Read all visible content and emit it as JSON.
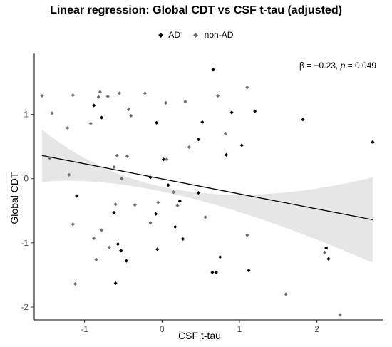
{
  "chart_data": {
    "type": "scatter",
    "title": "Linear regression: Global CDT vs CSF t-tau (adjusted)",
    "xlabel": "CSF t-tau",
    "ylabel": "Global CDT",
    "xlim": [
      -1.65,
      2.85
    ],
    "ylim": [
      -2.2,
      1.95
    ],
    "x_ticks": [
      -1,
      0,
      1,
      2
    ],
    "y_ticks": [
      -2,
      -1,
      0,
      1
    ],
    "x_tick_labels": [
      "-1",
      "0",
      "1",
      "2"
    ],
    "y_tick_labels": [
      "-2",
      "-1",
      "0",
      "1"
    ],
    "legend": {
      "position": "top",
      "entries": [
        "AD",
        "non-AD"
      ]
    },
    "annotation": {
      "beta_text": "β = −0.23,",
      "p_symbol": "p",
      "p_value_text": "= 0.049"
    },
    "regression": {
      "x": [
        -1.55,
        2.72
      ],
      "y": [
        0.36,
        -0.64
      ],
      "ci_upper": [
        0.77,
        -0.19,
        0.02
      ],
      "ci_lower": [
        -0.05,
        -0.28,
        -1.31
      ],
      "ci_x": [
        -1.55,
        0.0,
        2.72
      ]
    },
    "series": [
      {
        "name": "AD",
        "color": "#000000",
        "points": [
          [
            -1.1,
            -0.27
          ],
          [
            -0.88,
            1.14
          ],
          [
            -0.78,
            0.95
          ],
          [
            -0.62,
            -0.53
          ],
          [
            -0.6,
            -1.63
          ],
          [
            -0.57,
            -1.02
          ],
          [
            -0.53,
            -1.12
          ],
          [
            -0.46,
            -1.28
          ],
          [
            -0.15,
            0.02
          ],
          [
            -0.08,
            -0.55
          ],
          [
            -0.07,
            0.87
          ],
          [
            -0.06,
            -1.1
          ],
          [
            0.02,
            0.3
          ],
          [
            0.08,
            -0.1
          ],
          [
            0.17,
            -0.75
          ],
          [
            0.23,
            -0.35
          ],
          [
            0.27,
            -0.94
          ],
          [
            0.47,
            -0.22
          ],
          [
            0.47,
            0.61
          ],
          [
            0.52,
            0.88
          ],
          [
            0.65,
            -1.46
          ],
          [
            0.66,
            1.7
          ],
          [
            0.7,
            -1.46
          ],
          [
            0.75,
            -1.22
          ],
          [
            0.83,
            0.37
          ],
          [
            0.9,
            1.03
          ],
          [
            1.03,
            0.52
          ],
          [
            1.12,
            -1.43
          ],
          [
            1.2,
            1.05
          ],
          [
            1.82,
            0.92
          ],
          [
            2.12,
            -1.08
          ],
          [
            2.15,
            -1.25
          ],
          [
            2.72,
            0.57
          ]
        ]
      },
      {
        "name": "non-AD",
        "color": "#6e6e6e",
        "points": [
          [
            -1.55,
            1.29
          ],
          [
            -1.45,
            0.32
          ],
          [
            -1.42,
            1.02
          ],
          [
            -1.2,
            0.06
          ],
          [
            -1.15,
            -0.71
          ],
          [
            -1.15,
            1.3
          ],
          [
            -1.22,
            0.79
          ],
          [
            -1.12,
            -1.64
          ],
          [
            -0.92,
            0.86
          ],
          [
            -0.88,
            -0.93
          ],
          [
            -0.85,
            -1.26
          ],
          [
            -0.82,
            1.27
          ],
          [
            -0.8,
            1.35
          ],
          [
            -0.78,
            -0.8
          ],
          [
            -0.7,
            1.28
          ],
          [
            -0.68,
            -1.07
          ],
          [
            -0.62,
            0.18
          ],
          [
            -0.6,
            -0.4
          ],
          [
            -0.58,
            0.36
          ],
          [
            -0.55,
            1.33
          ],
          [
            -0.52,
            0.0
          ],
          [
            -0.45,
            0.35
          ],
          [
            -0.43,
            1.08
          ],
          [
            -0.4,
            0.98
          ],
          [
            -0.35,
            -0.41
          ],
          [
            -0.22,
            1.33
          ],
          [
            -0.15,
            -0.69
          ],
          [
            -0.05,
            -0.37
          ],
          [
            0.05,
            1.18
          ],
          [
            0.06,
            0.3
          ],
          [
            0.15,
            -0.21
          ],
          [
            0.2,
            -0.42
          ],
          [
            0.3,
            1.2
          ],
          [
            0.35,
            0.49
          ],
          [
            0.56,
            -0.6
          ],
          [
            0.72,
            1.29
          ],
          [
            0.82,
            0.7
          ],
          [
            1.1,
            1.42
          ],
          [
            1.1,
            -0.88
          ],
          [
            1.6,
            -1.8
          ],
          [
            2.1,
            -1.15
          ],
          [
            2.3,
            -2.12
          ]
        ]
      }
    ]
  }
}
